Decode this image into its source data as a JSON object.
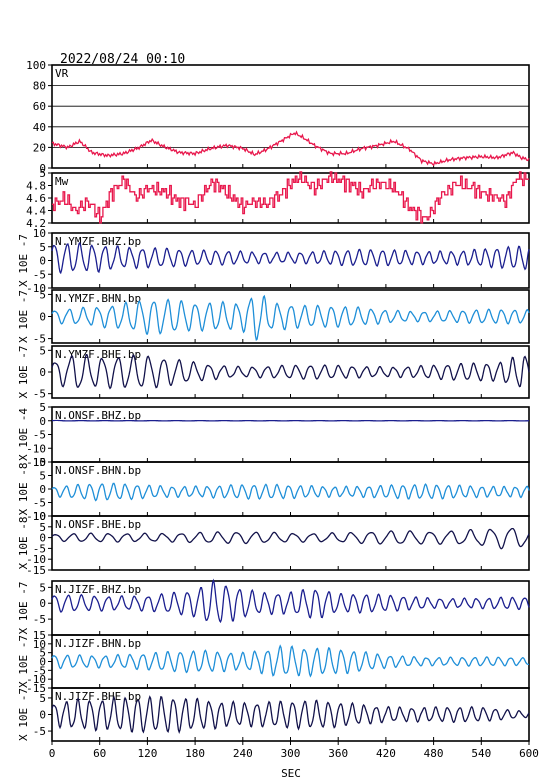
{
  "header": {
    "timestamp": "2022/08/24 00:10"
  },
  "chart_data": {
    "type": "line",
    "xlabel": "SEC",
    "xlim": [
      0,
      600
    ],
    "xticks": [
      0,
      60,
      120,
      180,
      240,
      300,
      360,
      420,
      480,
      540,
      600
    ],
    "colors": {
      "red": "#e8174c",
      "navy": "#1b1f8f",
      "cyan": "#1f8fd8",
      "nearblack": "#12124a"
    },
    "panels": [
      {
        "id": "vr",
        "label": "VR",
        "ylabel": "",
        "ylim": [
          0,
          100
        ],
        "yticks": [
          0,
          20,
          40,
          60,
          80,
          100
        ],
        "grid": true,
        "color": "red",
        "kind": "points",
        "x": [
          0,
          20,
          35,
          50,
          70,
          90,
          110,
          125,
          140,
          160,
          180,
          200,
          220,
          240,
          255,
          270,
          290,
          305,
          315,
          330,
          350,
          370,
          390,
          410,
          430,
          450,
          465,
          480,
          500,
          520,
          540,
          560,
          580,
          590,
          600
        ],
        "y": [
          24,
          20,
          26,
          15,
          12,
          14,
          20,
          27,
          21,
          15,
          14,
          19,
          22,
          19,
          13,
          18,
          27,
          34,
          30,
          22,
          14,
          14,
          19,
          22,
          26,
          18,
          7,
          4,
          8,
          10,
          11,
          10,
          15,
          10,
          8
        ]
      },
      {
        "id": "mw",
        "label": "Mw",
        "ylabel": "",
        "ylim": [
          4.2,
          5.0
        ],
        "yticks": [
          4.2,
          4.4,
          4.6,
          4.8,
          5.0
        ],
        "grid": false,
        "color": "red",
        "kind": "steps",
        "x": [
          0,
          15,
          30,
          45,
          60,
          75,
          90,
          105,
          120,
          140,
          160,
          180,
          200,
          220,
          240,
          255,
          270,
          290,
          310,
          330,
          350,
          370,
          390,
          410,
          430,
          450,
          470,
          490,
          510,
          530,
          550,
          570,
          585,
          600
        ],
        "y": [
          4.5,
          4.6,
          4.4,
          4.55,
          4.3,
          4.7,
          4.9,
          4.6,
          4.75,
          4.7,
          4.55,
          4.5,
          4.85,
          4.7,
          4.45,
          4.55,
          4.5,
          4.7,
          4.95,
          4.75,
          4.95,
          4.85,
          4.7,
          4.85,
          4.75,
          4.45,
          4.25,
          4.65,
          4.85,
          4.75,
          4.65,
          4.55,
          4.95,
          4.9
        ]
      },
      {
        "id": "ymzf-bhz",
        "label": "N.YMZF.BHZ.bp",
        "ylabel": "X 10E -7",
        "ylim": [
          -10,
          10
        ],
        "yticks": [
          -10,
          -5,
          0,
          5,
          10
        ],
        "color": "navy",
        "kind": "wave",
        "offset": 1,
        "env": [
          [
            0,
            5
          ],
          [
            60,
            6
          ],
          [
            130,
            4
          ],
          [
            180,
            2.5
          ],
          [
            300,
            2.5
          ],
          [
            480,
            3
          ],
          [
            600,
            4
          ]
        ],
        "periods": [
          [
            0,
            16
          ],
          [
            600,
            14
          ]
        ]
      },
      {
        "id": "ymzf-bhn",
        "label": "N.YMZF.BHN.bp",
        "ylabel": "X 10E -7",
        "ylim": [
          -6,
          6
        ],
        "yticks": [
          -5,
          0,
          5
        ],
        "color": "cyan",
        "kind": "wave",
        "offset": 0,
        "env": [
          [
            0,
            1.5
          ],
          [
            60,
            3
          ],
          [
            120,
            4
          ],
          [
            180,
            3
          ],
          [
            240,
            4
          ],
          [
            258,
            7.5
          ],
          [
            275,
            4
          ],
          [
            320,
            2.5
          ],
          [
            450,
            1.5
          ],
          [
            600,
            1.5
          ]
        ],
        "periods": [
          [
            0,
            18
          ],
          [
            600,
            16
          ]
        ]
      },
      {
        "id": "ymzf-bhe",
        "label": "N.YMZF.BHE.bp",
        "ylabel": "X 10E -7",
        "ylim": [
          -6,
          6
        ],
        "yticks": [
          -5,
          0,
          5
        ],
        "color": "nearblack",
        "kind": "wave",
        "offset": 0,
        "env": [
          [
            0,
            3
          ],
          [
            30,
            5.5
          ],
          [
            60,
            4
          ],
          [
            120,
            3.5
          ],
          [
            240,
            1.5
          ],
          [
            420,
            1.5
          ],
          [
            560,
            2
          ],
          [
            585,
            4
          ],
          [
            600,
            5
          ]
        ],
        "periods": [
          [
            0,
            20
          ],
          [
            600,
            16
          ]
        ]
      },
      {
        "id": "onsf-bhz",
        "label": "N.ONSF.BHZ.bp",
        "ylabel": "X 10E -4",
        "ylim": [
          -15,
          5
        ],
        "yticks": [
          -15,
          -10,
          -5,
          0,
          5
        ],
        "color": "navy",
        "kind": "flat",
        "env": [
          [
            0,
            0.3
          ],
          [
            20,
            0.1
          ],
          [
            600,
            0.1
          ]
        ],
        "periods": [
          [
            0,
            30
          ],
          [
            600,
            30
          ]
        ]
      },
      {
        "id": "onsf-bhn",
        "label": "N.ONSF.BHN.bp",
        "ylabel": "X 10E -8",
        "ylim": [
          -10,
          10
        ],
        "yticks": [
          -10,
          -5,
          0,
          5,
          10
        ],
        "color": "cyan",
        "kind": "wave",
        "offset": -1,
        "env": [
          [
            0,
            2
          ],
          [
            60,
            3
          ],
          [
            180,
            2.5
          ],
          [
            420,
            2.5
          ],
          [
            600,
            2.5
          ]
        ],
        "periods": [
          [
            0,
            15
          ],
          [
            600,
            14
          ]
        ]
      },
      {
        "id": "onsf-bhe",
        "label": "N.ONSF.BHE.bp",
        "ylabel": "X 10E -8",
        "ylim": [
          -15,
          10
        ],
        "yticks": [
          -15,
          -10,
          -5,
          0,
          5,
          10
        ],
        "color": "nearblack",
        "kind": "wave",
        "offset": 0,
        "env": [
          [
            0,
            1.5
          ],
          [
            120,
            2.5
          ],
          [
            300,
            2.5
          ],
          [
            480,
            3
          ],
          [
            570,
            6
          ],
          [
            600,
            4
          ]
        ],
        "periods": [
          [
            0,
            22
          ],
          [
            600,
            26
          ]
        ]
      },
      {
        "id": "jizf-bhz",
        "label": "N.JIZF.BHZ.bp",
        "ylabel": "X 10E -7",
        "ylim": [
          -10,
          7
        ],
        "yticks": [
          -5,
          0,
          5
        ],
        "color": "navy",
        "kind": "wave",
        "offset": 0,
        "env": [
          [
            0,
            2.5
          ],
          [
            120,
            3
          ],
          [
            180,
            4
          ],
          [
            200,
            6.5
          ],
          [
            260,
            4
          ],
          [
            300,
            4.5
          ],
          [
            330,
            6
          ],
          [
            360,
            3
          ],
          [
            480,
            2
          ],
          [
            600,
            1.8
          ]
        ],
        "periods": [
          [
            0,
            17
          ],
          [
            600,
            15
          ]
        ]
      },
      {
        "id": "jizf-bhn",
        "label": "N.JIZF.BHN.bp",
        "ylabel": "X 10E -7",
        "ylim": [
          -15,
          15
        ],
        "yticks": [
          -15,
          -10,
          -5,
          0,
          5,
          10,
          15
        ],
        "color": "cyan",
        "kind": "wave",
        "offset": 0,
        "env": [
          [
            0,
            4
          ],
          [
            120,
            5
          ],
          [
            200,
            6
          ],
          [
            240,
            6
          ],
          [
            285,
            11
          ],
          [
            330,
            8
          ],
          [
            420,
            4
          ],
          [
            480,
            3
          ],
          [
            600,
            2
          ]
        ],
        "periods": [
          [
            0,
            16
          ],
          [
            600,
            15
          ]
        ]
      },
      {
        "id": "jizf-bhe",
        "label": "N.JIZF.BHE.bp",
        "ylabel": "X 10E -7",
        "ylim": [
          -8,
          8
        ],
        "yticks": [
          -5,
          0,
          5
        ],
        "color": "nearblack",
        "kind": "wave",
        "offset": 0,
        "env": [
          [
            0,
            4
          ],
          [
            30,
            6
          ],
          [
            120,
            5
          ],
          [
            200,
            5
          ],
          [
            320,
            4
          ],
          [
            420,
            3
          ],
          [
            540,
            2
          ],
          [
            600,
            1
          ]
        ],
        "periods": [
          [
            0,
            15
          ],
          [
            600,
            15
          ]
        ]
      }
    ]
  }
}
